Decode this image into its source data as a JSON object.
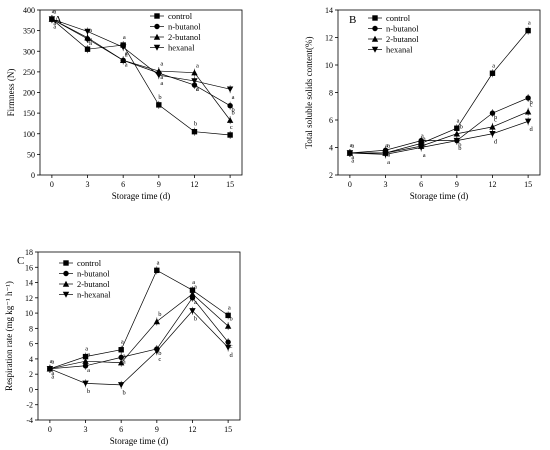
{
  "chart_data": [
    {
      "panel_label": "A",
      "type": "line",
      "xlabel": "Storage time (d)",
      "ylabel": "Firmness (N)",
      "x": [
        0,
        3,
        6,
        9,
        12,
        15
      ],
      "xlim": [
        -1,
        16
      ],
      "ylim": [
        0,
        400
      ],
      "yticks": [
        0,
        50,
        100,
        150,
        200,
        250,
        300,
        350,
        400
      ],
      "legend_position": "top-right",
      "series": [
        {
          "name": "control",
          "marker": "square",
          "values": [
            378,
            305,
            315,
            170,
            105,
            97
          ],
          "labels": [
            "a",
            "b",
            "a",
            "b",
            "b",
            "c"
          ]
        },
        {
          "name": "n-butanol",
          "marker": "circle",
          "values": [
            378,
            330,
            278,
            247,
            218,
            168
          ],
          "labels": [
            "a",
            "a",
            "a",
            "a",
            "a",
            "b"
          ]
        },
        {
          "name": "2-butanol",
          "marker": "triangle-up",
          "values": [
            378,
            333,
            278,
            252,
            248,
            133
          ],
          "labels": [
            "a",
            "a",
            "a",
            "a",
            "a",
            "b"
          ]
        },
        {
          "name": "hexanal",
          "marker": "triangle-down",
          "values": [
            378,
            348,
            310,
            242,
            228,
            208
          ],
          "labels": [
            "a",
            "a",
            "a",
            "a",
            "a",
            "a"
          ]
        }
      ]
    },
    {
      "panel_label": "B",
      "type": "line",
      "xlabel": "Storage time (d)",
      "ylabel": "Total soluble solids content(%)",
      "x": [
        0,
        3,
        6,
        9,
        12,
        15
      ],
      "xlim": [
        -1,
        16
      ],
      "ylim": [
        2,
        14
      ],
      "yticks": [
        2,
        4,
        6,
        8,
        10,
        12,
        14
      ],
      "legend_position": "top-left",
      "series": [
        {
          "name": "control",
          "marker": "square",
          "values": [
            3.6,
            3.6,
            4.3,
            5.4,
            9.4,
            12.5
          ],
          "labels": [
            "a",
            "a",
            "a",
            "a",
            "a",
            "a"
          ]
        },
        {
          "name": "n-butanol",
          "marker": "circle",
          "values": [
            3.6,
            3.8,
            4.5,
            4.5,
            6.5,
            7.6
          ],
          "labels": [
            "a",
            "a",
            "a",
            "b",
            "b",
            "b"
          ]
        },
        {
          "name": "2-butanol",
          "marker": "triangle-up",
          "values": [
            3.6,
            3.6,
            4.1,
            5.0,
            5.5,
            6.6
          ],
          "labels": [
            "a",
            "a",
            "a",
            "ab",
            "c",
            "c"
          ]
        },
        {
          "name": "hexanal",
          "marker": "triangle-down",
          "values": [
            3.6,
            3.5,
            4.0,
            4.5,
            5.0,
            5.9
          ],
          "labels": [
            "a",
            "a",
            "a",
            "b",
            "d",
            "d"
          ]
        }
      ]
    },
    {
      "panel_label": "C",
      "type": "line",
      "xlabel": "Storage time (d)",
      "ylabel": "Respiration rate (mg kg⁻¹ h⁻¹)",
      "x": [
        0,
        3,
        6,
        9,
        12,
        15
      ],
      "xlim": [
        -1,
        16
      ],
      "ylim": [
        -4,
        18
      ],
      "yticks": [
        -4,
        -2,
        0,
        2,
        4,
        6,
        8,
        10,
        12,
        14,
        16,
        18
      ],
      "legend_position": "top-left",
      "series": [
        {
          "name": "control",
          "marker": "square",
          "values": [
            2.7,
            4.3,
            5.2,
            15.6,
            13.0,
            9.7
          ],
          "labels": [
            "a",
            "a",
            "a",
            "a",
            "a",
            "a"
          ]
        },
        {
          "name": "n-butanol",
          "marker": "circle",
          "values": [
            2.7,
            3.1,
            4.2,
            5.3,
            12.0,
            6.2
          ],
          "labels": [
            "a",
            "a",
            "a",
            "b",
            "a",
            "c"
          ]
        },
        {
          "name": "2-butanol",
          "marker": "triangle-up",
          "values": [
            2.7,
            3.7,
            3.5,
            8.9,
            12.5,
            8.3
          ],
          "labels": [
            "a",
            "a",
            "a",
            "b",
            "a",
            "b"
          ]
        },
        {
          "name": "n-hexanal",
          "marker": "triangle-down",
          "values": [
            2.7,
            0.8,
            0.6,
            5.0,
            10.3,
            5.5
          ],
          "labels": [
            "a",
            "b",
            "b",
            "c",
            "b",
            "d"
          ]
        }
      ]
    }
  ]
}
